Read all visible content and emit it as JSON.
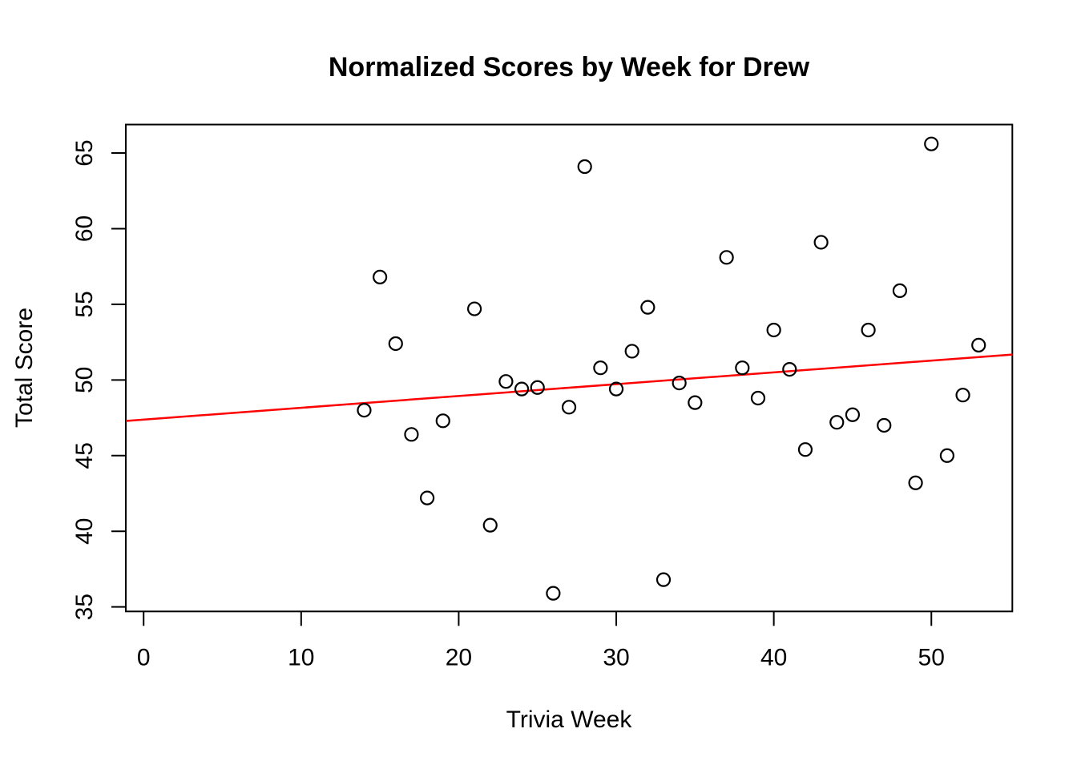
{
  "chart_data": {
    "type": "scatter",
    "title": "Normalized Scores by Week for Drew",
    "xlabel": "Trivia Week",
    "ylabel": "Total Score",
    "x_ticks": [
      0,
      10,
      20,
      30,
      40,
      50
    ],
    "y_ticks": [
      35,
      40,
      45,
      50,
      55,
      60,
      65
    ],
    "xlim": [
      -1.13,
      55.14
    ],
    "ylim": [
      34.7,
      66.88
    ],
    "grid": false,
    "legend": null,
    "point_style": {
      "marker": "open-circle",
      "stroke_color": "#000000",
      "fill": "none",
      "radius_px": 8
    },
    "points": [
      [
        14,
        48.0
      ],
      [
        15,
        56.8
      ],
      [
        16,
        52.4
      ],
      [
        17,
        46.4
      ],
      [
        18,
        42.2
      ],
      [
        19,
        47.3
      ],
      [
        21,
        54.7
      ],
      [
        22,
        40.4
      ],
      [
        23,
        49.9
      ],
      [
        24,
        49.4
      ],
      [
        25,
        49.5
      ],
      [
        26,
        35.9
      ],
      [
        27,
        48.2
      ],
      [
        28,
        64.1
      ],
      [
        29,
        50.8
      ],
      [
        30,
        49.4
      ],
      [
        31,
        51.9
      ],
      [
        32,
        54.8
      ],
      [
        33,
        36.8
      ],
      [
        34,
        49.8
      ],
      [
        35,
        48.5
      ],
      [
        37,
        58.1
      ],
      [
        38,
        50.8
      ],
      [
        39,
        48.8
      ],
      [
        40,
        53.3
      ],
      [
        41,
        50.7
      ],
      [
        42,
        45.4
      ],
      [
        43,
        59.1
      ],
      [
        44,
        47.2
      ],
      [
        45,
        47.7
      ],
      [
        46,
        53.3
      ],
      [
        47,
        47.0
      ],
      [
        48,
        55.9
      ],
      [
        49,
        43.2
      ],
      [
        50,
        65.6
      ],
      [
        51,
        45.0
      ],
      [
        52,
        49.0
      ],
      [
        53,
        52.3
      ]
    ],
    "trend_line": {
      "color": "#FF0000",
      "intercept": 47.38,
      "slope": 0.078,
      "x_start": -1.13,
      "x_end": 55.14
    }
  }
}
